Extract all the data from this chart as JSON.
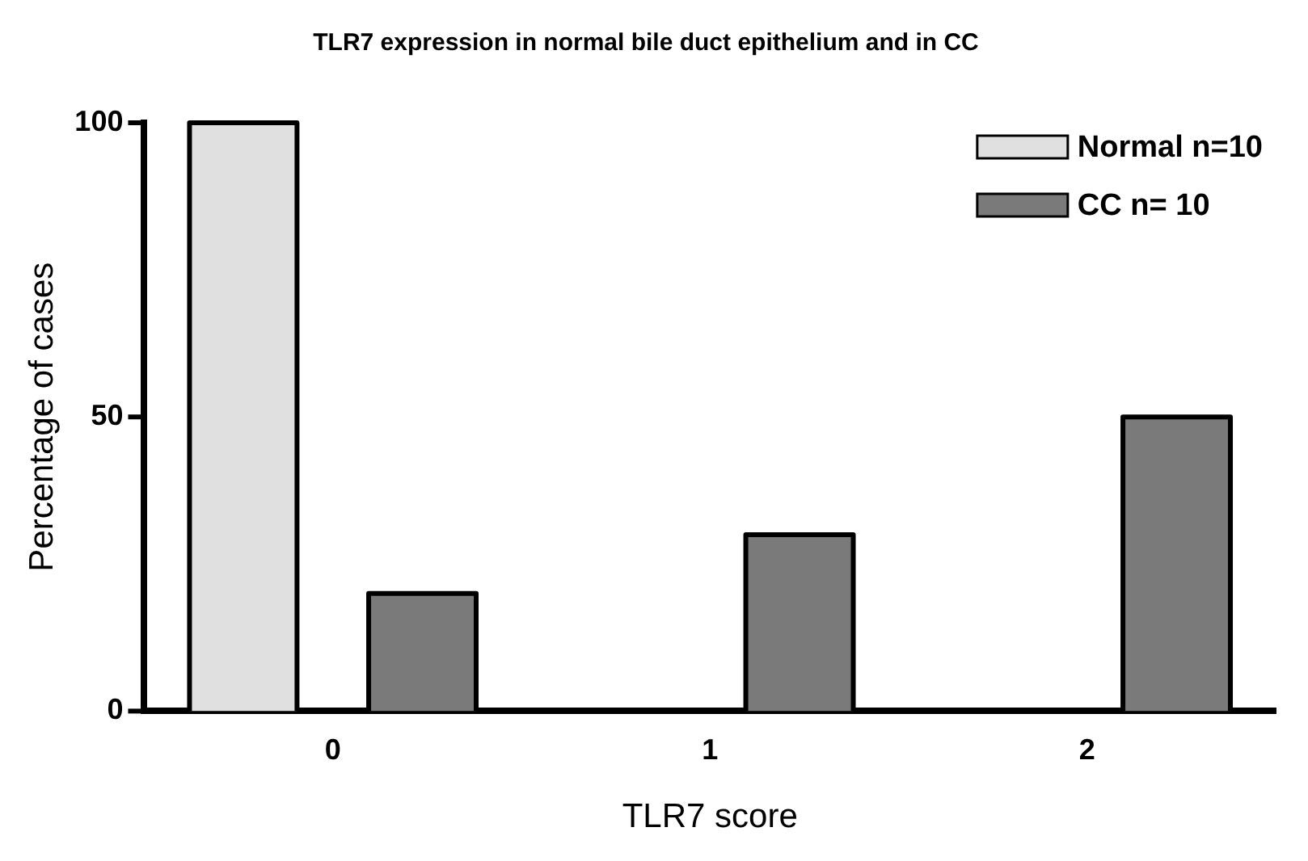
{
  "chart_data": {
    "type": "bar",
    "title": "TLR7 expression in normal bile duct epithelium and in CC",
    "xlabel": "TLR7 score",
    "ylabel": "Percentage of cases",
    "categories": [
      "0",
      "1",
      "2"
    ],
    "series": [
      {
        "name": "Normal n=10",
        "color": "#e0e0e0",
        "values": [
          100,
          0,
          0
        ]
      },
      {
        "name": "CC n= 10",
        "color": "#7a7a7a",
        "values": [
          20,
          30,
          50
        ]
      }
    ],
    "ylim": [
      0,
      100
    ],
    "yticks": [
      0,
      50,
      100
    ],
    "grid": false,
    "legend": "top right"
  }
}
